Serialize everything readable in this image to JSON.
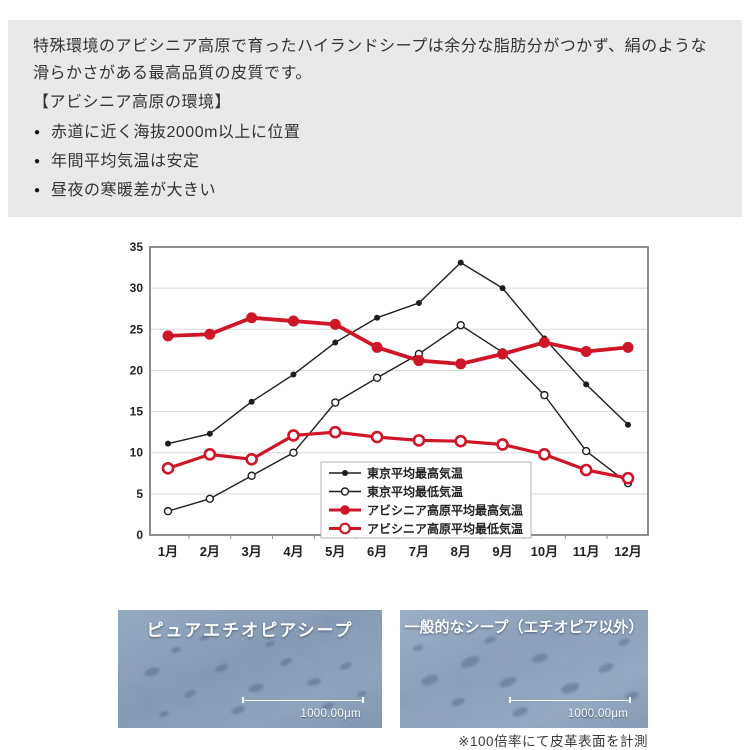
{
  "intro": {
    "paragraph": "特殊環境のアビシニア高原で育ったハイランドシープは余分な脂肪分がつかず、絹のような滑らかさがある最高品質の皮質です。",
    "heading": "【アビシニア高原の環境】",
    "bullets": [
      "赤道に近く海抜2000m以上に位置",
      "年間平均気温は安定",
      "昼夜の寒暖差が大きい"
    ]
  },
  "chart_data": {
    "type": "line",
    "title": "",
    "categories": [
      "1月",
      "2月",
      "3月",
      "4月",
      "5月",
      "6月",
      "7月",
      "8月",
      "9月",
      "10月",
      "11月",
      "12月"
    ],
    "series": [
      {
        "name": "東京平均最高気温",
        "color": "#1e1e1e",
        "line_width": 1.4,
        "marker": "filled",
        "marker_r": 3,
        "marker_stroke": 0,
        "values": [
          11.1,
          12.3,
          16.2,
          19.5,
          23.4,
          26.4,
          28.2,
          33.1,
          30.0,
          23.9,
          18.3,
          13.4
        ]
      },
      {
        "name": "東京平均最低気温",
        "color": "#1e1e1e",
        "line_width": 1.4,
        "marker": "open",
        "marker_r": 3.5,
        "marker_stroke": 1.4,
        "values": [
          2.9,
          4.4,
          7.2,
          10.0,
          16.1,
          19.1,
          22.0,
          25.5,
          22.2,
          17.0,
          10.2,
          6.3
        ]
      },
      {
        "name": "アビシニア高原平均最高気温",
        "color": "#cf1528",
        "line_width": 3.8,
        "marker": "filled",
        "marker_r": 5.5,
        "marker_stroke": 0,
        "values": [
          24.2,
          24.4,
          26.4,
          26.0,
          25.6,
          22.8,
          21.2,
          20.8,
          22.0,
          23.4,
          22.3,
          22.8
        ]
      },
      {
        "name": "アビシニア高原平均最低気温",
        "color": "#cf1528",
        "line_width": 3.2,
        "marker": "open",
        "marker_r": 5,
        "marker_stroke": 2.6,
        "values": [
          8.1,
          9.8,
          9.2,
          12.1,
          12.5,
          11.9,
          11.5,
          11.4,
          11.0,
          9.8,
          7.9,
          6.9
        ]
      }
    ],
    "xlabel": "",
    "ylabel": "",
    "ylim": [
      0,
      35
    ],
    "ytick_step": 5,
    "grid": true,
    "legend_position": "inside-bottom-center"
  },
  "micrographs": [
    {
      "caption": "ピュアエチオピアシープ",
      "scale_label": "1000.00μm"
    },
    {
      "caption": "一般的なシープ（エチオピア以外）",
      "scale_label": "1000.00μm"
    }
  ],
  "note": "※100倍率にて皮革表面を計測",
  "colors": {
    "accent_red": "#cf1528",
    "series_black": "#1e1e1e",
    "panel_bg": "#e9e9e9"
  }
}
